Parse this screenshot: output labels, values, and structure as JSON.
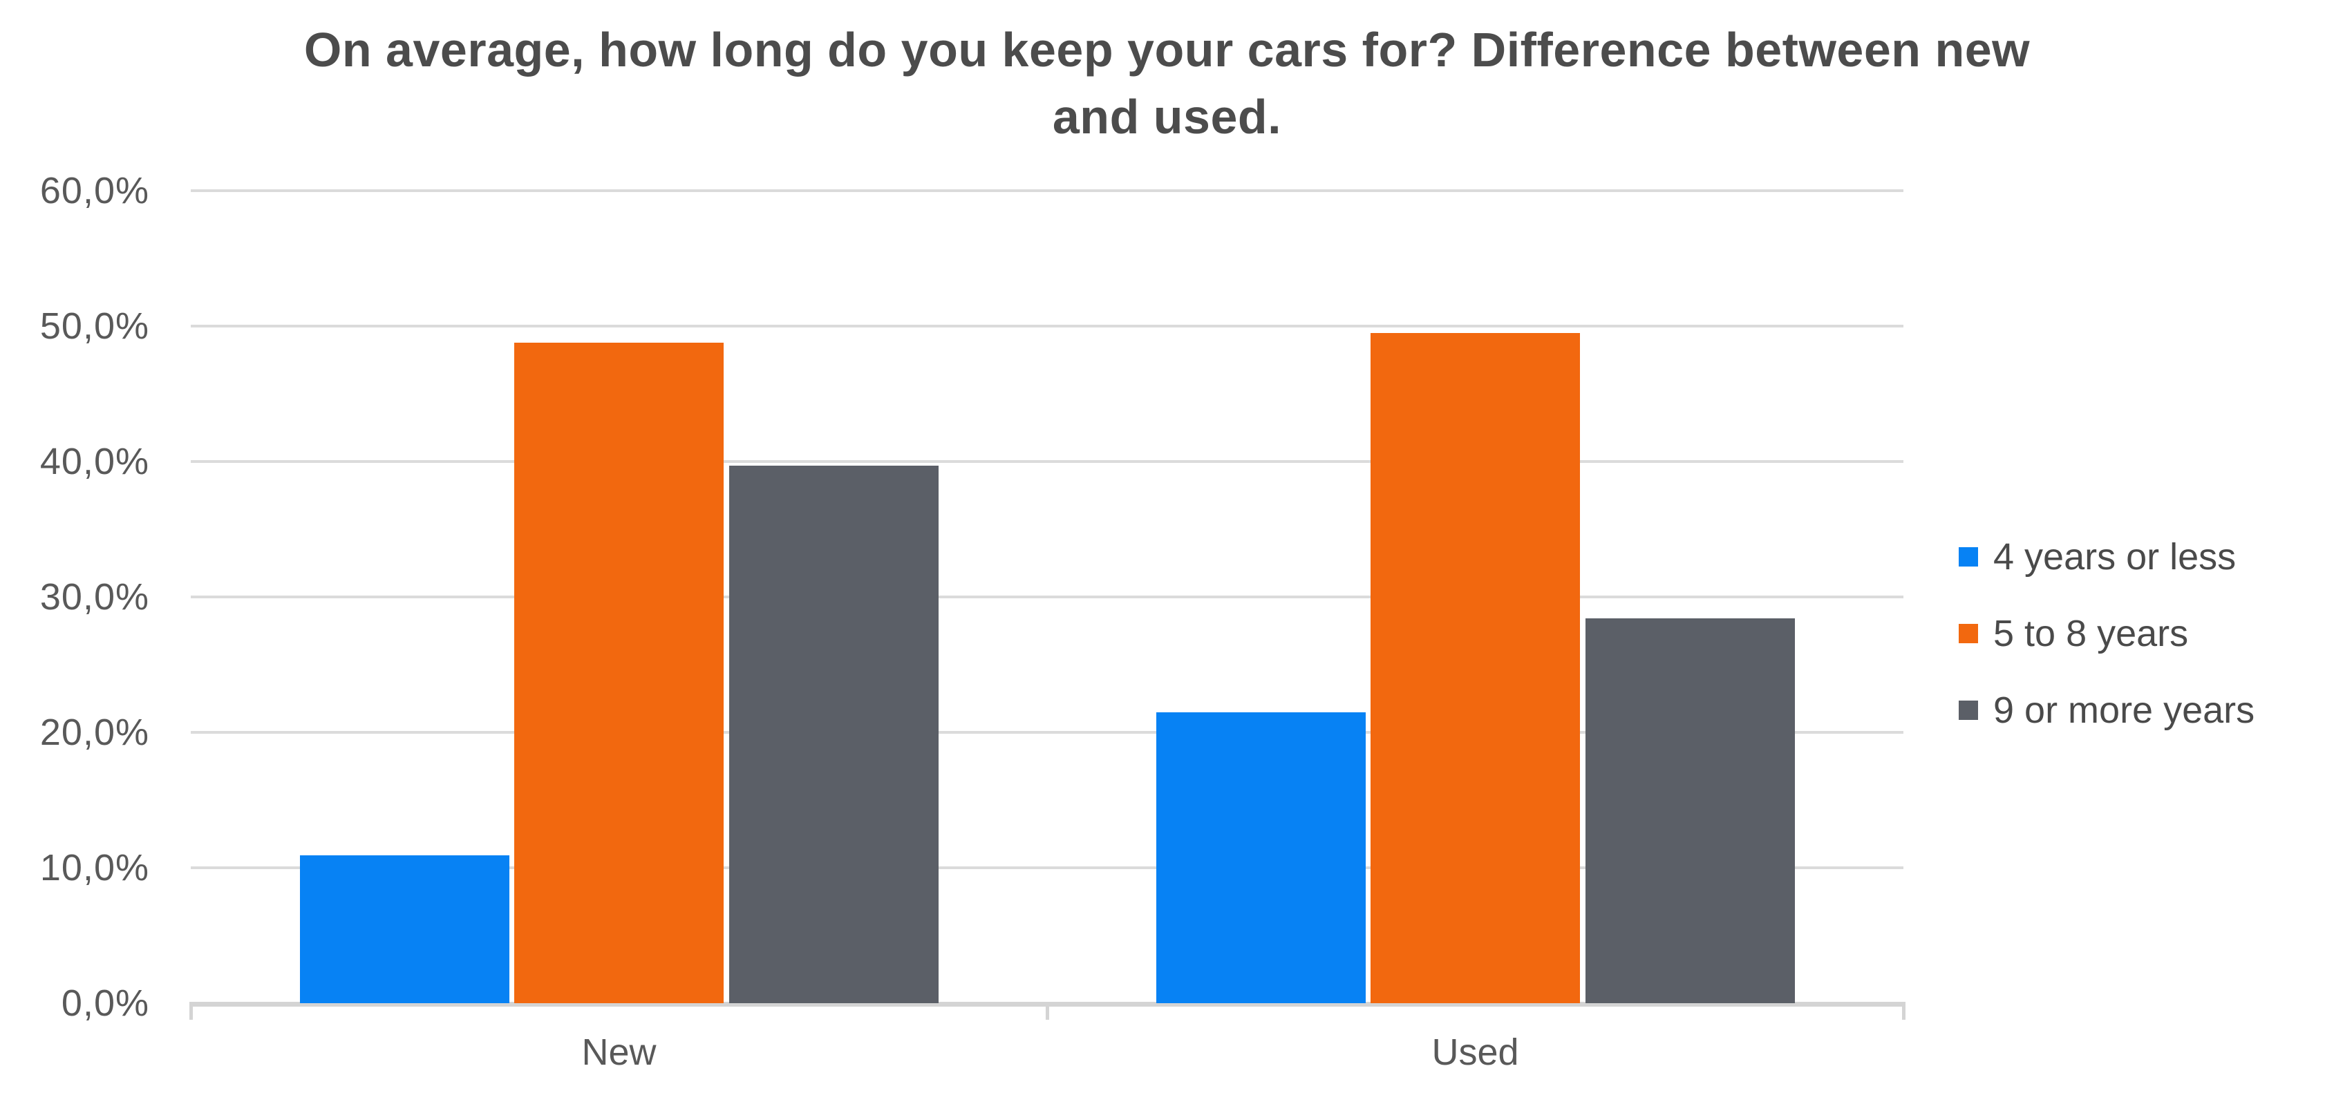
{
  "title": "On average, how long do you keep your cars for? Difference between new and used.",
  "title_lines": [
    "On average, how long do you keep your cars for? Difference between new",
    "and used."
  ],
  "chart_data": {
    "type": "bar",
    "title": "On average, how long do you keep your cars for? Difference between new and used.",
    "xlabel": "",
    "ylabel": "",
    "categories": [
      "New",
      "Used"
    ],
    "series": [
      {
        "name": "4 years or less",
        "color": "#0782F4",
        "values": [
          10.9,
          21.5
        ]
      },
      {
        "name": "5 to 8 years",
        "color": "#F2680F",
        "values": [
          48.8,
          49.5
        ]
      },
      {
        "name": "9 or more years",
        "color": "#5B5F67",
        "values": [
          39.7,
          28.4
        ]
      }
    ],
    "ylim": [
      0,
      60
    ],
    "ytick_step": 10,
    "ytick_labels": [
      "0,0%",
      "10,0%",
      "20,0%",
      "30,0%",
      "40,0%",
      "50,0%",
      "60,0%"
    ],
    "grid": true,
    "legend_position": "right",
    "value_unit": "percent",
    "decimal_separator": ","
  },
  "colors": {
    "series_blue": "#0782F4",
    "series_orange": "#F2680F",
    "series_gray": "#5B5F67",
    "gridline": "#DBDBDB",
    "axis_line": "#D4D4D4",
    "axis_text": "#595959",
    "title_text": "#4C4C4C",
    "legend_text": "#4A4A4A",
    "background": "#FFFFFF"
  }
}
